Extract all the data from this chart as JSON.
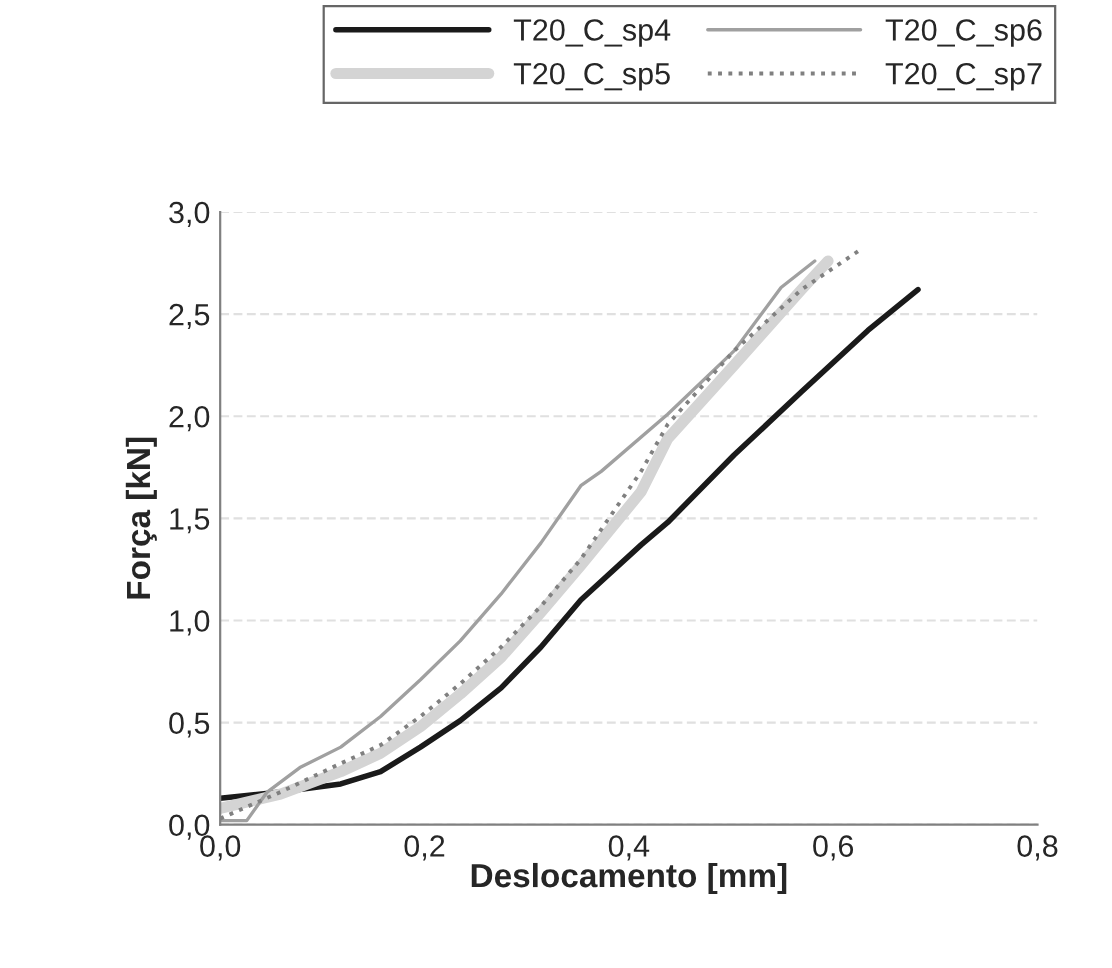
{
  "chart_data": {
    "type": "line",
    "xlabel": "Deslocamento [mm]",
    "ylabel": "Força [kN]",
    "xlim": [
      0,
      0.8
    ],
    "xticks": [
      {
        "value": 0,
        "label": "0,0"
      },
      {
        "value": 0.2,
        "label": "0,2"
      },
      {
        "value": 0.4,
        "label": "0,4"
      },
      {
        "value": 0.6,
        "label": "0,6"
      },
      {
        "value": 0.8,
        "label": "0,8"
      }
    ],
    "ylim": [
      0,
      3
    ],
    "yticks": [
      {
        "value": 0,
        "label": "0,0"
      },
      {
        "value": 0.5,
        "label": "0,5"
      },
      {
        "value": 1,
        "label": "1,0"
      },
      {
        "value": 1.5,
        "label": "1,5"
      },
      {
        "value": 2,
        "label": "2,0"
      },
      {
        "value": 2.5,
        "label": "2,5"
      },
      {
        "value": 3,
        "label": "3,0"
      }
    ],
    "grid": "y",
    "legend": "top",
    "marker": "none",
    "series": [
      {
        "name": "T20_C_sp4",
        "color": "#1a1a1a",
        "line_style": "solid",
        "x": [
          0,
          0.059,
          0.118,
          0.157,
          0.196,
          0.235,
          0.275,
          0.314,
          0.353,
          0.412,
          0.438,
          0.503,
          0.569,
          0.634,
          0.683
        ],
        "values": [
          0.13,
          0.16,
          0.2,
          0.26,
          0.38,
          0.51,
          0.67,
          0.87,
          1.1,
          1.37,
          1.48,
          1.81,
          2.12,
          2.42,
          2.62
        ]
      },
      {
        "name": "T20_C_sp5",
        "color": "#d4d4d4",
        "line_style": "solid",
        "x": [
          0,
          0.059,
          0.118,
          0.157,
          0.196,
          0.235,
          0.275,
          0.314,
          0.353,
          0.412,
          0.438,
          0.503,
          0.569,
          0.595
        ],
        "values": [
          0.08,
          0.15,
          0.26,
          0.35,
          0.48,
          0.64,
          0.82,
          1.04,
          1.27,
          1.63,
          1.89,
          2.25,
          2.62,
          2.76
        ]
      },
      {
        "name": "T20_C_sp6",
        "color": "#a0a0a0",
        "line_style": "solid",
        "x": [
          0,
          0.026,
          0.046,
          0.078,
          0.118,
          0.157,
          0.196,
          0.235,
          0.275,
          0.314,
          0.353,
          0.373,
          0.438,
          0.503,
          0.549,
          0.582
        ],
        "values": [
          0.02,
          0.02,
          0.16,
          0.28,
          0.38,
          0.53,
          0.71,
          0.9,
          1.13,
          1.38,
          1.66,
          1.73,
          2.01,
          2.32,
          2.63,
          2.76
        ]
      },
      {
        "name": "T20_C_sp7",
        "color": "#808080",
        "line_style": "dotted",
        "x": [
          0,
          0.059,
          0.118,
          0.157,
          0.196,
          0.235,
          0.275,
          0.314,
          0.353,
          0.412,
          0.438,
          0.503,
          0.569,
          0.625
        ],
        "values": [
          0.03,
          0.16,
          0.3,
          0.39,
          0.53,
          0.69,
          0.87,
          1.07,
          1.3,
          1.73,
          1.96,
          2.32,
          2.62,
          2.81
        ]
      }
    ]
  }
}
